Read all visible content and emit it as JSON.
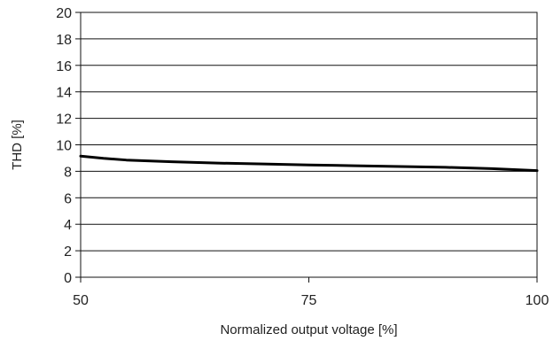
{
  "chart_data": {
    "type": "line",
    "title": "",
    "xlabel": "Normalized output voltage [%]",
    "ylabel": "THD [%]",
    "xlim": [
      50,
      100
    ],
    "ylim": [
      0,
      20
    ],
    "x_ticks": [
      50,
      75,
      100
    ],
    "y_ticks": [
      0,
      2,
      4,
      6,
      8,
      10,
      12,
      14,
      16,
      18,
      20
    ],
    "grid": "horizontal",
    "legend": "none",
    "series": [
      {
        "color": "#000000",
        "x": [
          50,
          52.5,
          55,
          60,
          65,
          70,
          75,
          80,
          85,
          90,
          95,
          100
        ],
        "y": [
          9.15,
          8.98,
          8.85,
          8.72,
          8.62,
          8.55,
          8.48,
          8.42,
          8.36,
          8.3,
          8.2,
          8.05
        ]
      }
    ]
  }
}
